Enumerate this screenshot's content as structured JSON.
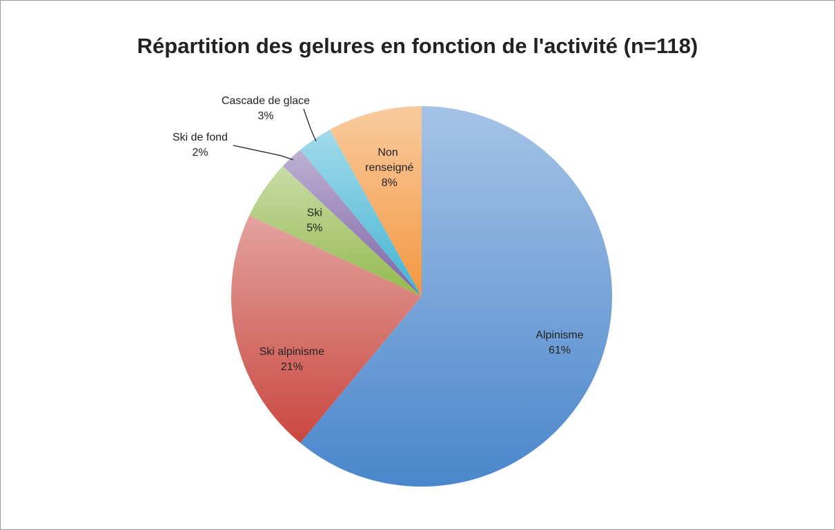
{
  "chart_data": {
    "type": "pie",
    "title": "Répartition des gelures en fonction de l'activité (n=118)",
    "categories": [
      "Alpinisme",
      "Ski alpinisme",
      "Ski",
      "Ski de fond",
      "Cascade de glace",
      "Non renseigné"
    ],
    "values": [
      61,
      21,
      5,
      2,
      3,
      8
    ],
    "value_labels": [
      "61%",
      "21%",
      "5%",
      "2%",
      "3%",
      "8%"
    ],
    "colors": [
      "#4a86cc",
      "#c9473f",
      "#93b94e",
      "#7c63a6",
      "#44b4d4",
      "#f3973f"
    ]
  }
}
